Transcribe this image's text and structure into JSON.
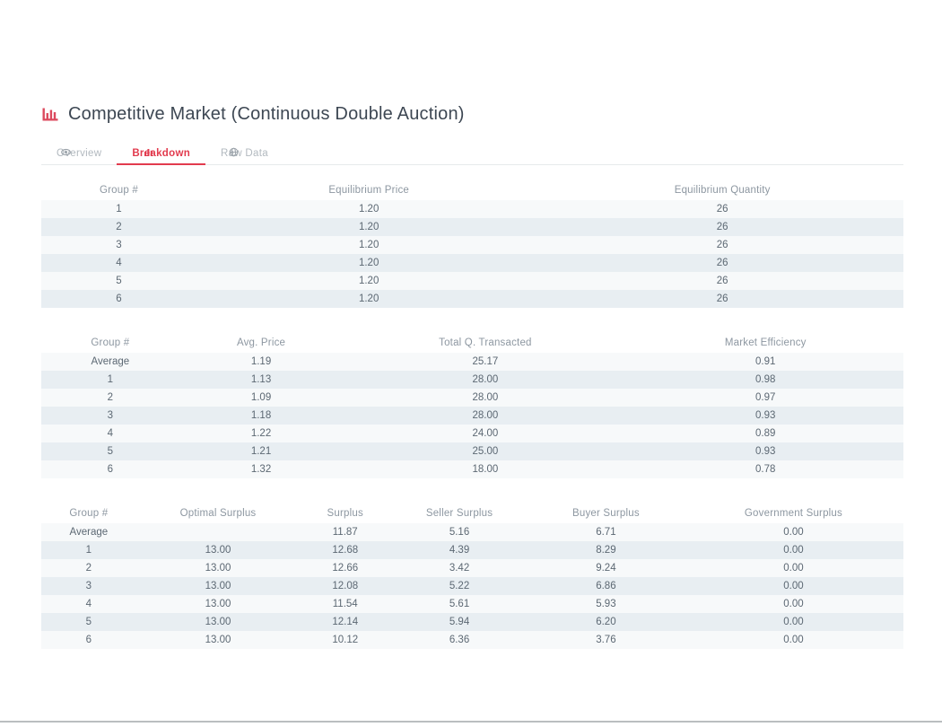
{
  "page": {
    "title": "Competitive Market (Continuous Double Auction)",
    "title_icon": "bar-chart-icon"
  },
  "colors": {
    "accent": "#e23b4e",
    "stripe_light": "#f7f9fa",
    "stripe_dark": "#e8eef2",
    "header_text": "#8d97a1",
    "cell_text": "#5c6873",
    "title_text": "#3d4753"
  },
  "tabs": [
    {
      "label": "Overview",
      "icon": "eye-icon",
      "active": false
    },
    {
      "label": "Breakdown",
      "icon": "bar-chart-icon",
      "active": true
    },
    {
      "label": "Raw Data",
      "icon": "globe-icon",
      "active": false
    }
  ],
  "tables": [
    {
      "name": "equilibrium-table",
      "columns": [
        "Group #",
        "Equilibrium Price",
        "Equilibrium Quantity"
      ],
      "rows": [
        [
          "1",
          "1.20",
          "26"
        ],
        [
          "2",
          "1.20",
          "26"
        ],
        [
          "3",
          "1.20",
          "26"
        ],
        [
          "4",
          "1.20",
          "26"
        ],
        [
          "5",
          "1.20",
          "26"
        ],
        [
          "6",
          "1.20",
          "26"
        ]
      ]
    },
    {
      "name": "market-summary-table",
      "columns": [
        "Group #",
        "Avg. Price",
        "Total Q. Transacted",
        "Market Efficiency"
      ],
      "rows": [
        [
          "Average",
          "1.19",
          "25.17",
          "0.91"
        ],
        [
          "1",
          "1.13",
          "28.00",
          "0.98"
        ],
        [
          "2",
          "1.09",
          "28.00",
          "0.97"
        ],
        [
          "3",
          "1.18",
          "28.00",
          "0.93"
        ],
        [
          "4",
          "1.22",
          "24.00",
          "0.89"
        ],
        [
          "5",
          "1.21",
          "25.00",
          "0.93"
        ],
        [
          "6",
          "1.32",
          "18.00",
          "0.78"
        ]
      ]
    },
    {
      "name": "surplus-table",
      "columns": [
        "Group #",
        "Optimal Surplus",
        "Surplus",
        "Seller Surplus",
        "Buyer Surplus",
        "Government Surplus"
      ],
      "rows": [
        [
          "Average",
          "",
          "11.87",
          "5.16",
          "6.71",
          "0.00"
        ],
        [
          "1",
          "13.00",
          "12.68",
          "4.39",
          "8.29",
          "0.00"
        ],
        [
          "2",
          "13.00",
          "12.66",
          "3.42",
          "9.24",
          "0.00"
        ],
        [
          "3",
          "13.00",
          "12.08",
          "5.22",
          "6.86",
          "0.00"
        ],
        [
          "4",
          "13.00",
          "11.54",
          "5.61",
          "5.93",
          "0.00"
        ],
        [
          "5",
          "13.00",
          "12.14",
          "5.94",
          "6.20",
          "0.00"
        ],
        [
          "6",
          "13.00",
          "10.12",
          "6.36",
          "3.76",
          "0.00"
        ]
      ]
    }
  ]
}
